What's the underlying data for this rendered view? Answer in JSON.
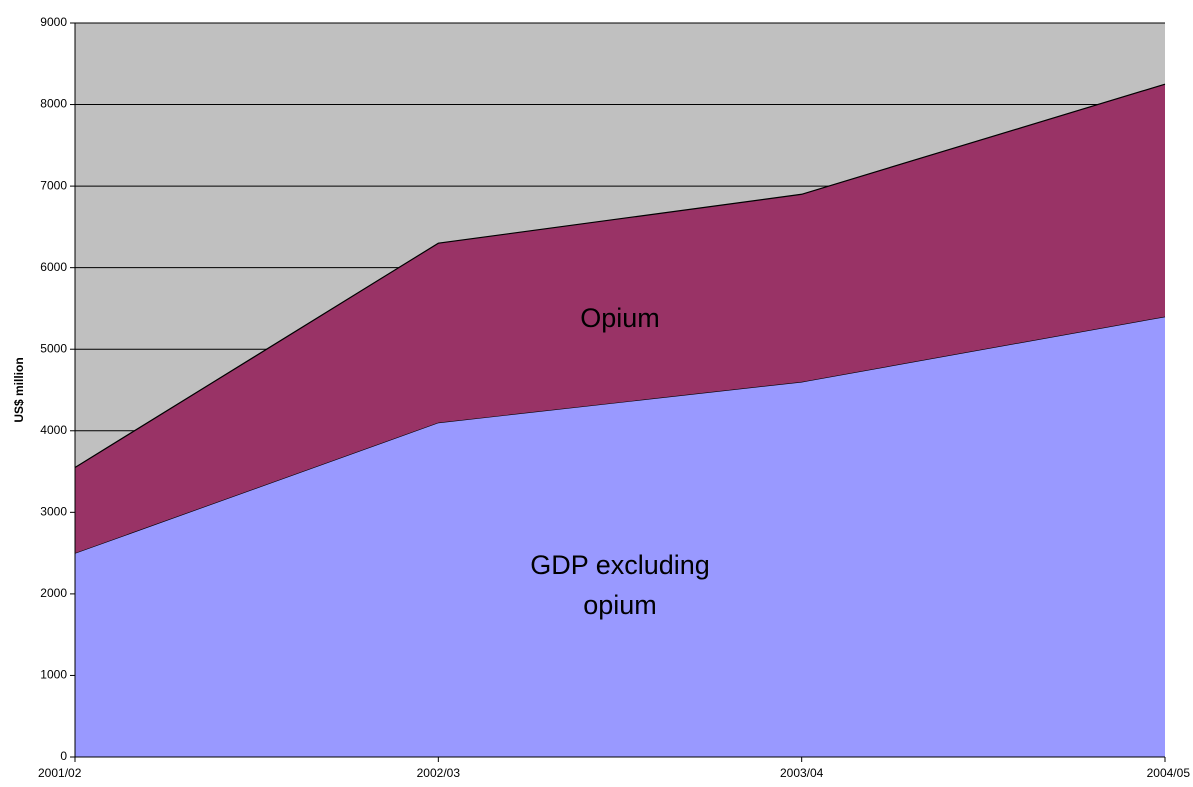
{
  "chart_data": {
    "type": "area",
    "stacked": true,
    "y_label": "US$ million",
    "categories": [
      "2001/02",
      "2002/03",
      "2003/04",
      "2004/05"
    ],
    "series": [
      {
        "name": "GDP excluding opium",
        "color": "#9999ff",
        "values": [
          2500,
          4100,
          4600,
          5400
        ]
      },
      {
        "name": "Opium",
        "color": "#993366",
        "values": [
          1050,
          2200,
          2300,
          2850
        ]
      }
    ],
    "ylim": [
      0,
      9000
    ],
    "yticks": [
      0,
      1000,
      2000,
      3000,
      4000,
      5000,
      6000,
      7000,
      8000,
      9000
    ],
    "grid": true,
    "plot_background": "#c0c0c0"
  }
}
